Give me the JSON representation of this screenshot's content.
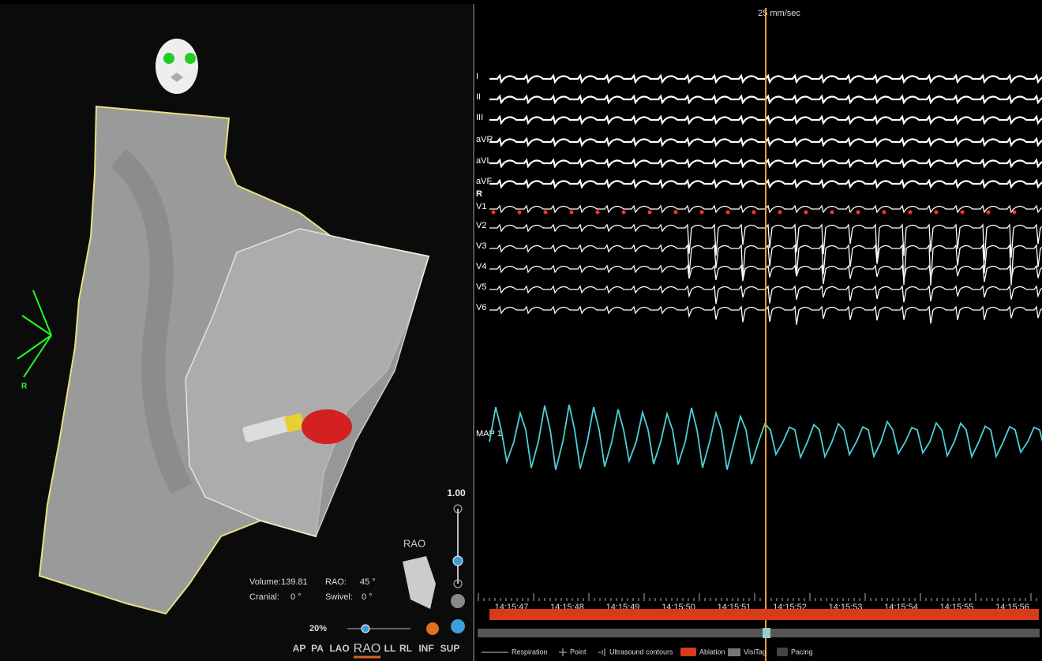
{
  "viewer": {
    "orientation_label": "R",
    "zoom_value": "1.00",
    "view_name": "RAO",
    "info": [
      {
        "label": "Volume:",
        "value": "139.81"
      },
      {
        "label": "RAO:",
        "value": "45 °"
      },
      {
        "label": "Cranial:",
        "value": "0 °"
      },
      {
        "label": "Swivel:",
        "value": "0 °"
      }
    ],
    "zoom_percent": "20%",
    "views": [
      "AP",
      "PA",
      "LAO",
      "RAO",
      "LL",
      "RL",
      "INF",
      "SUP"
    ],
    "active_view": "RAO"
  },
  "recording": {
    "speed": "25 mm/sec",
    "leads": [
      "I",
      "II",
      "III",
      "aVR",
      "aVL",
      "aVF",
      "V1",
      "V2",
      "V3",
      "V4",
      "V5",
      "V6"
    ],
    "extra_label": "R",
    "map_label": "MAP 1",
    "times": [
      "14:15:47",
      "14:15:48",
      "14:15:49",
      "14:15:50",
      "14:15:51",
      "14:15:52",
      "14:15:53",
      "14:15:54",
      "14:15:55",
      "14:15:56"
    ],
    "legend": [
      "Respiration",
      "Point",
      "Ultrasound contours",
      "Ablation",
      "VisiTag",
      "Pacing"
    ]
  }
}
